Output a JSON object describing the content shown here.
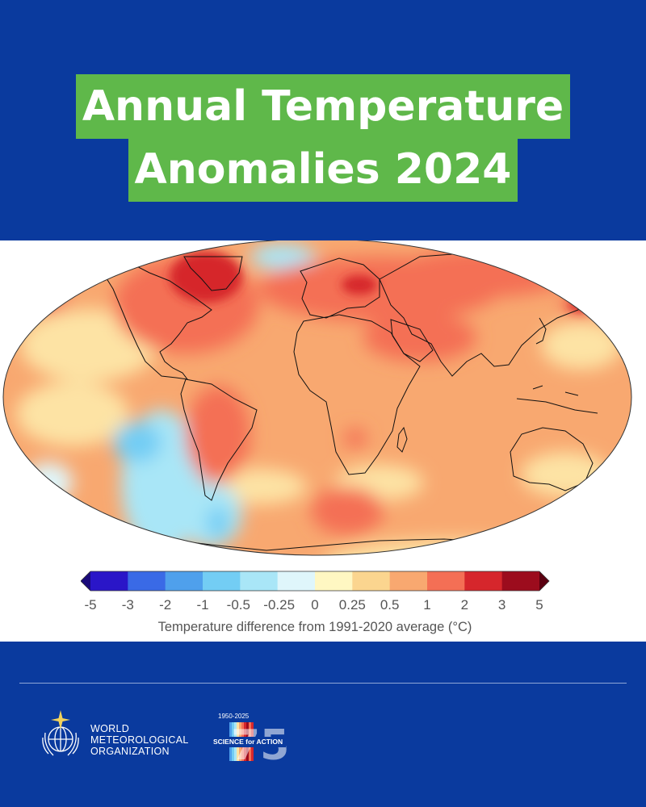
{
  "title": {
    "line1": "Annual Temperature",
    "line2": "Anomalies 2024"
  },
  "map": {
    "projection": "Robinson",
    "background": "#ffffff"
  },
  "legend": {
    "ticks": [
      "-5",
      "-3",
      "-2",
      "-1",
      "-0.5",
      "-0.25",
      "0",
      "0.25",
      "0.5",
      "1",
      "2",
      "3",
      "5"
    ],
    "colors": [
      "#2a16c8",
      "#3a6ae6",
      "#4fa0ec",
      "#73cdf4",
      "#a9e6f7",
      "#dff6fb",
      "#fff7c2",
      "#fbd58f",
      "#f8a870",
      "#f46f55",
      "#d6262c",
      "#9c0c1d"
    ],
    "underflow_color": "#1a0a7a",
    "overflow_color": "#5a0010",
    "label": "Temperature difference from 1991-2020 average (°C)"
  },
  "footer": {
    "org_line1": "WORLD",
    "org_line2": "METEOROLOGICAL",
    "org_line3": "ORGANIZATION",
    "anniversary_dates": "1950-2025",
    "anniversary_slogan": "SCIENCE for ACTION",
    "anniversary_number": "75"
  },
  "colors": {
    "brand_blue": "#0a3a9e",
    "title_green": "#5fb84a"
  }
}
